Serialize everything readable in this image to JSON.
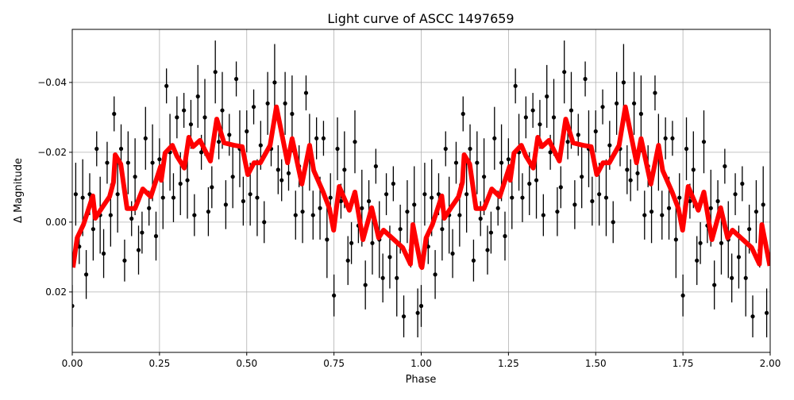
{
  "chart_data": {
    "type": "scatter",
    "title": "Light curve of ASCC 1497659",
    "xlabel": "Phase",
    "ylabel": "Δ Magnitude",
    "xlim": [
      0,
      2
    ],
    "ylim": [
      0.0373,
      -0.0552
    ],
    "y_inverted": true,
    "grid": true,
    "xticks": [
      "0.00",
      "0.25",
      "0.50",
      "0.75",
      "1.00",
      "1.25",
      "1.50",
      "1.75",
      "2.00"
    ],
    "xtick_values": [
      0,
      0.25,
      0.5,
      0.75,
      1.0,
      1.25,
      1.5,
      1.75,
      2.0
    ],
    "yticks": [
      "−0.04",
      "−0.02",
      "0.00",
      "0.02"
    ],
    "ytick_values": [
      -0.04,
      -0.02,
      0.0,
      0.02
    ],
    "observations": {
      "color": "#000000",
      "shown_twice_offset_by_one_phase": true,
      "phase": [
        0.0,
        0.01,
        0.02,
        0.03,
        0.04,
        0.05,
        0.06,
        0.07,
        0.08,
        0.09,
        0.1,
        0.11,
        0.12,
        0.13,
        0.14,
        0.15,
        0.16,
        0.17,
        0.18,
        0.19,
        0.2,
        0.21,
        0.22,
        0.23,
        0.24,
        0.25,
        0.26,
        0.27,
        0.28,
        0.29,
        0.3,
        0.31,
        0.32,
        0.33,
        0.34,
        0.35,
        0.36,
        0.37,
        0.38,
        0.39,
        0.4,
        0.41,
        0.42,
        0.43,
        0.44,
        0.45,
        0.46,
        0.47,
        0.48,
        0.49,
        0.5,
        0.51,
        0.52,
        0.53,
        0.54,
        0.55,
        0.56,
        0.57,
        0.58,
        0.59,
        0.6,
        0.61,
        0.62,
        0.63,
        0.64,
        0.65,
        0.66,
        0.67,
        0.68,
        0.69,
        0.7,
        0.71,
        0.72,
        0.73,
        0.74,
        0.75,
        0.76,
        0.77,
        0.78,
        0.79,
        0.8,
        0.81,
        0.82,
        0.83,
        0.84,
        0.85,
        0.86,
        0.87,
        0.88,
        0.89,
        0.9,
        0.91,
        0.92,
        0.93,
        0.94,
        0.95,
        0.96,
        0.97,
        0.98,
        0.99
      ],
      "mag": [
        0.024,
        -0.008,
        0.007,
        -0.007,
        0.015,
        -0.008,
        0.002,
        -0.021,
        -0.002,
        0.009,
        -0.017,
        -0.002,
        -0.031,
        -0.008,
        -0.021,
        0.011,
        -0.017,
        -0.001,
        -0.013,
        0.008,
        0.003,
        -0.024,
        -0.004,
        -0.017,
        0.004,
        -0.018,
        -0.007,
        -0.039,
        -0.02,
        -0.007,
        -0.03,
        -0.011,
        -0.032,
        -0.012,
        -0.028,
        -0.002,
        -0.036,
        -0.02,
        -0.03,
        -0.003,
        -0.01,
        -0.043,
        -0.023,
        -0.032,
        -0.005,
        -0.025,
        -0.013,
        -0.041,
        -0.021,
        -0.006,
        -0.026,
        -0.008,
        -0.033,
        -0.007,
        -0.022,
        0.0,
        -0.034,
        -0.021,
        -0.04,
        -0.015,
        -0.012,
        -0.034,
        -0.014,
        -0.031,
        -0.002,
        -0.016,
        -0.003,
        -0.037,
        -0.02,
        -0.002,
        -0.024,
        -0.004,
        -0.024,
        0.005,
        -0.007,
        0.021,
        -0.021,
        -0.006,
        -0.015,
        0.011,
        0.006,
        -0.023,
        0.001,
        -0.004,
        0.018,
        -0.006,
        0.006,
        -0.016,
        0.005,
        0.016,
        -0.008,
        0.01,
        -0.011,
        0.016,
        0.002,
        0.027,
        -0.003,
        0.008,
        -0.005,
        0.026
      ],
      "mag_err": [
        0.006,
        0.009,
        0.005,
        0.011,
        0.007,
        0.006,
        0.009,
        0.005,
        0.011,
        0.007,
        0.006,
        0.009,
        0.005,
        0.011,
        0.007,
        0.006,
        0.009,
        0.005,
        0.011,
        0.007,
        0.006,
        0.009,
        0.005,
        0.011,
        0.007,
        0.006,
        0.009,
        0.005,
        0.011,
        0.007,
        0.006,
        0.009,
        0.005,
        0.011,
        0.007,
        0.006,
        0.009,
        0.005,
        0.011,
        0.007,
        0.006,
        0.009,
        0.005,
        0.011,
        0.007,
        0.006,
        0.009,
        0.005,
        0.011,
        0.007,
        0.006,
        0.009,
        0.005,
        0.011,
        0.007,
        0.006,
        0.009,
        0.005,
        0.011,
        0.007,
        0.006,
        0.009,
        0.005,
        0.011,
        0.007,
        0.006,
        0.009,
        0.005,
        0.011,
        0.007,
        0.006,
        0.009,
        0.005,
        0.011,
        0.007,
        0.006,
        0.009,
        0.005,
        0.011,
        0.007,
        0.006,
        0.009,
        0.005,
        0.011,
        0.007,
        0.006,
        0.009,
        0.005,
        0.011,
        0.007,
        0.006,
        0.009,
        0.005,
        0.011,
        0.007,
        0.006,
        0.009,
        0.005,
        0.011,
        0.007
      ]
    },
    "binned_curve": {
      "color": "#ff0000",
      "phase": [
        0.002,
        0.014,
        0.032,
        0.059,
        0.066,
        0.084,
        0.107,
        0.118,
        0.123,
        0.139,
        0.157,
        0.18,
        0.202,
        0.225,
        0.253,
        0.255,
        0.266,
        0.287,
        0.3,
        0.321,
        0.334,
        0.346,
        0.366,
        0.396,
        0.414,
        0.435,
        0.464,
        0.487,
        0.503,
        0.521,
        0.539,
        0.567,
        0.585,
        0.617,
        0.63,
        0.658,
        0.68,
        0.692,
        0.719,
        0.737,
        0.749,
        0.765,
        0.794,
        0.81,
        0.833,
        0.858,
        0.878,
        0.892,
        0.947,
        0.969,
        0.976,
        0.999,
        1.002,
        1.014,
        1.032,
        1.059,
        1.066,
        1.084,
        1.107,
        1.118,
        1.123,
        1.139,
        1.157,
        1.18,
        1.202,
        1.225,
        1.253,
        1.255,
        1.266,
        1.287,
        1.3,
        1.321,
        1.334,
        1.346,
        1.366,
        1.396,
        1.414,
        1.435,
        1.464,
        1.487,
        1.503,
        1.521,
        1.539,
        1.567,
        1.585,
        1.617,
        1.63,
        1.658,
        1.68,
        1.692,
        1.719,
        1.737,
        1.749,
        1.765,
        1.794,
        1.81,
        1.833,
        1.858,
        1.878,
        1.892,
        1.947,
        1.969,
        1.976,
        1.999
      ],
      "mag": [
        0.013,
        0.0045,
        0.0007,
        -0.0075,
        -0.0011,
        -0.0039,
        -0.0073,
        -0.0114,
        -0.0193,
        -0.0166,
        -0.0039,
        -0.0039,
        -0.0095,
        -0.0073,
        -0.0159,
        -0.012,
        -0.0198,
        -0.022,
        -0.0189,
        -0.0155,
        -0.0243,
        -0.0216,
        -0.0234,
        -0.0175,
        -0.0295,
        -0.0227,
        -0.022,
        -0.0216,
        -0.0136,
        -0.017,
        -0.017,
        -0.022,
        -0.033,
        -0.017,
        -0.0239,
        -0.0109,
        -0.022,
        -0.0148,
        -0.0086,
        -0.0039,
        0.0023,
        -0.0102,
        -0.0034,
        -0.0086,
        0.005,
        -0.0041,
        0.0045,
        0.0023,
        0.0073,
        0.012,
        0.0007,
        0.0125,
        0.013,
        0.0045,
        0.0007,
        -0.0075,
        -0.0011,
        -0.0039,
        -0.0073,
        -0.0114,
        -0.0193,
        -0.0166,
        -0.0039,
        -0.0039,
        -0.0095,
        -0.0073,
        -0.0159,
        -0.012,
        -0.0198,
        -0.022,
        -0.0189,
        -0.0155,
        -0.0243,
        -0.0216,
        -0.0234,
        -0.0175,
        -0.0295,
        -0.0227,
        -0.022,
        -0.0216,
        -0.0136,
        -0.017,
        -0.017,
        -0.022,
        -0.033,
        -0.017,
        -0.0239,
        -0.0109,
        -0.022,
        -0.0148,
        -0.0086,
        -0.0039,
        0.0023,
        -0.0102,
        -0.0034,
        -0.0086,
        0.005,
        -0.0041,
        0.0045,
        0.0023,
        0.0073,
        0.012,
        0.0007,
        0.0125
      ]
    }
  }
}
